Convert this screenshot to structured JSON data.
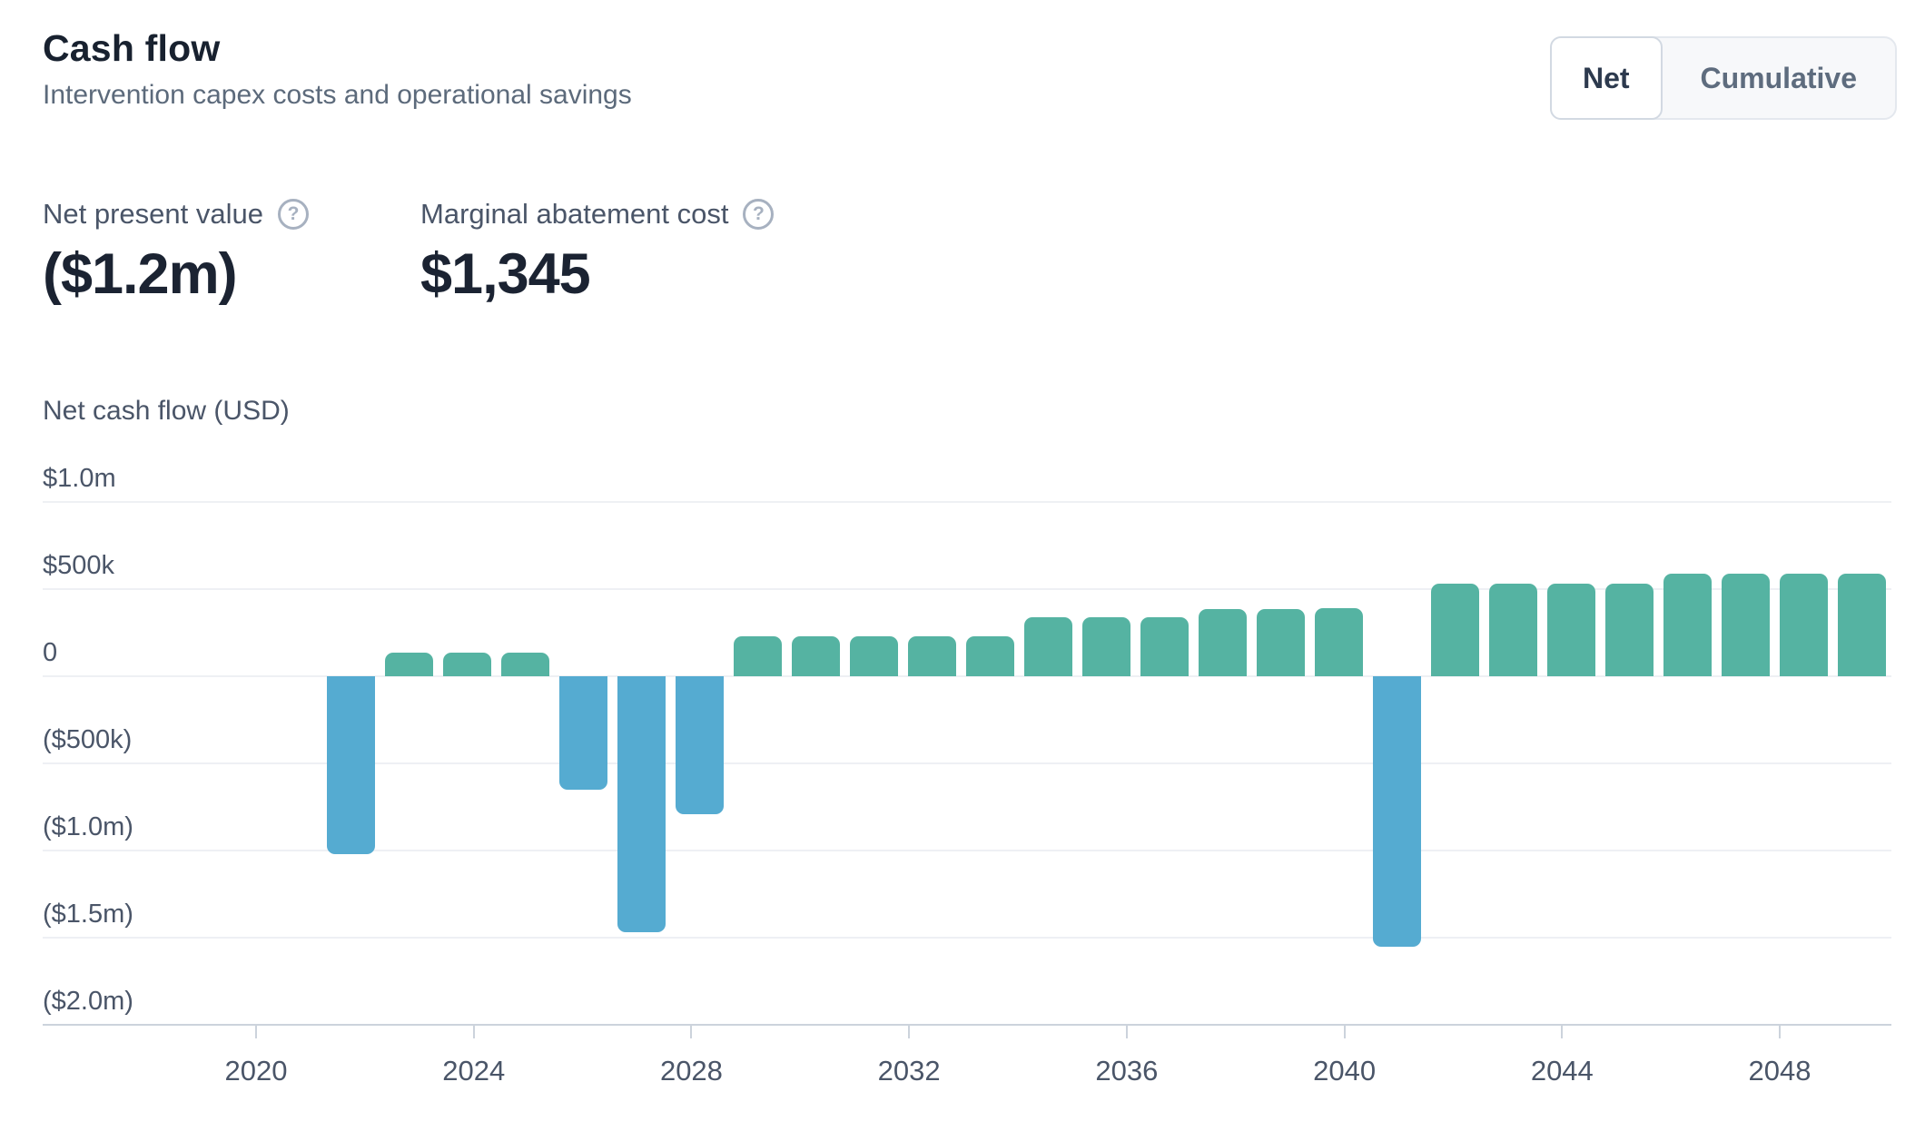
{
  "header": {
    "title": "Cash flow",
    "subtitle": "Intervention capex costs and operational savings",
    "toggle": {
      "options": [
        "Net",
        "Cumulative"
      ],
      "selected": "Net"
    }
  },
  "metrics": [
    {
      "label": "Net present value",
      "value": "($1.2m)",
      "help_icon": "question-circle"
    },
    {
      "label": "Marginal abatement cost",
      "value": "$1,345",
      "help_icon": "question-circle"
    }
  ],
  "chart_data": {
    "type": "bar",
    "title": "Net cash flow (USD)",
    "xlabel": "",
    "ylabel": "Net cash flow (USD)",
    "grid": true,
    "legend": "none",
    "ylim": [
      -2000000,
      1000000
    ],
    "positive_color": "#55b3a2",
    "negative_color": "#55abd1",
    "x": [
      2022,
      2023,
      2024,
      2025,
      2026,
      2027,
      2028,
      2029,
      2030,
      2031,
      2032,
      2033,
      2034,
      2035,
      2036,
      2037,
      2038,
      2039,
      2040,
      2041,
      2042,
      2043,
      2044,
      2045,
      2046,
      2047,
      2048
    ],
    "values": [
      -1020000,
      135000,
      135000,
      135000,
      -650000,
      -1470000,
      -790000,
      230000,
      230000,
      230000,
      230000,
      230000,
      340000,
      340000,
      340000,
      385000,
      385000,
      390000,
      -1550000,
      530000,
      530000,
      530000,
      530000,
      590000,
      590000,
      590000,
      590000
    ],
    "x_ticks": [
      2020,
      2024,
      2028,
      2032,
      2036,
      2040,
      2044,
      2048
    ],
    "y_ticks": [
      {
        "label": "$1.0m",
        "value": 1000000
      },
      {
        "label": "$500k",
        "value": 500000
      },
      {
        "label": "0",
        "value": 0
      },
      {
        "label": "($500k)",
        "value": -500000
      },
      {
        "label": "($1.0m)",
        "value": -1000000
      },
      {
        "label": "($1.5m)",
        "value": -1500000
      },
      {
        "label": "($2.0m)",
        "value": -2000000
      }
    ]
  }
}
